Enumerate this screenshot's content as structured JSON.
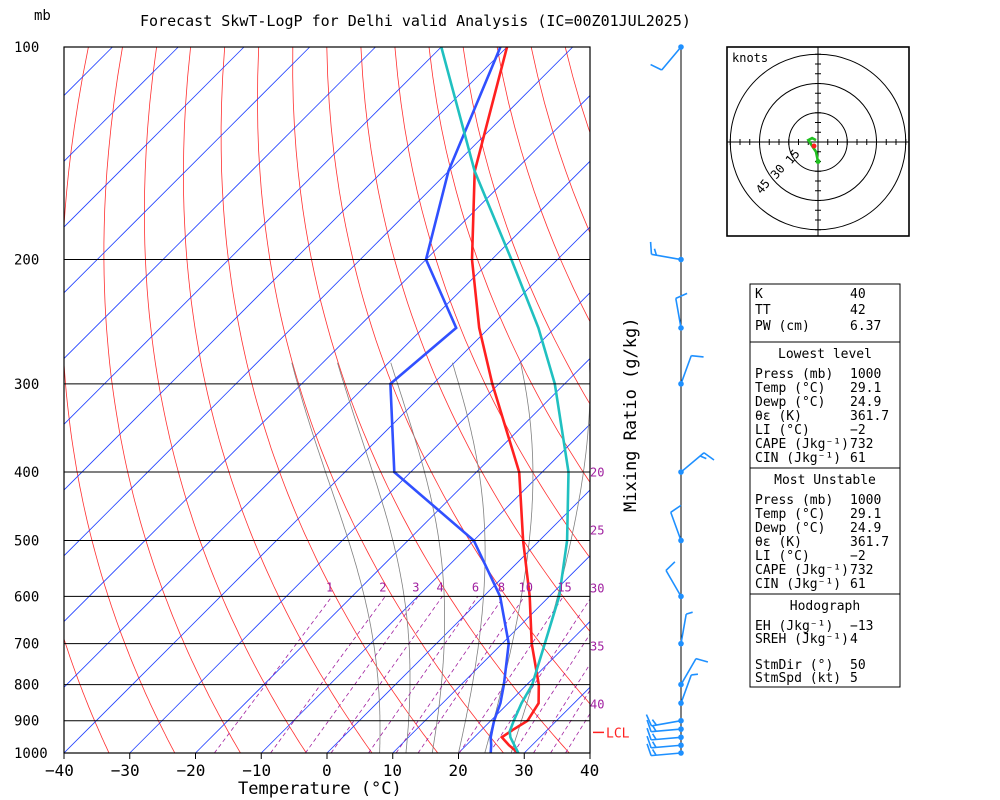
{
  "chart_data": [
    {
      "type": "skewt",
      "title": "Forecast SkwT-LogP for Delhi valid Analysis  (IC=00Z01JUL2025)",
      "xlabel": "Temperature (°C)",
      "ylabel_units": "mb",
      "xlim": [
        -40,
        40
      ],
      "ylim": [
        1000,
        100
      ],
      "x_ticks": [
        -40,
        -30,
        -20,
        -10,
        0,
        10,
        20,
        30,
        40
      ],
      "pressure_levels": [
        100,
        200,
        300,
        400,
        500,
        600,
        700,
        800,
        900,
        1000
      ],
      "grid": true,
      "series": [
        {
          "name": "Temperature",
          "color": "#ff2020",
          "points": [
            [
              1000,
              29.1
            ],
            [
              975,
              26.5
            ],
            [
              950,
              24.2
            ],
            [
              925,
              24.8
            ],
            [
              900,
              25.6
            ],
            [
              850,
              24.6
            ],
            [
              800,
              21.8
            ],
            [
              700,
              14.5
            ],
            [
              600,
              7.0
            ],
            [
              500,
              -2.5
            ],
            [
              400,
              -13.5
            ],
            [
              300,
              -31.0
            ],
            [
              250,
              -41.5
            ],
            [
              200,
              -53.0
            ],
            [
              150,
              -66.0
            ],
            [
              100,
              -80.0
            ]
          ]
        },
        {
          "name": "Dewpoint",
          "color": "#3050ff",
          "points": [
            [
              1000,
              24.9
            ],
            [
              975,
              23.8
            ],
            [
              950,
              22.5
            ],
            [
              925,
              21.5
            ],
            [
              900,
              20.5
            ],
            [
              850,
              18.8
            ],
            [
              800,
              16.5
            ],
            [
              700,
              11.0
            ],
            [
              600,
              2.5
            ],
            [
              500,
              -10.0
            ],
            [
              400,
              -32.5
            ],
            [
              300,
              -46.5
            ],
            [
              250,
              -45.0
            ],
            [
              200,
              -60.0
            ],
            [
              150,
              -70.0
            ],
            [
              100,
              -81.0
            ]
          ]
        },
        {
          "name": "Parcel",
          "color": "#20c0c0",
          "points": [
            [
              1000,
              29.1
            ],
            [
              950,
              25.5
            ],
            [
              932,
              24.5
            ],
            [
              900,
              23.5
            ],
            [
              850,
              22.0
            ],
            [
              800,
              20.8
            ],
            [
              700,
              16.5
            ],
            [
              600,
              11.5
            ],
            [
              500,
              4.2
            ],
            [
              400,
              -6.0
            ],
            [
              300,
              -21.5
            ],
            [
              250,
              -32.5
            ],
            [
              200,
              -47.0
            ],
            [
              150,
              -66.0
            ],
            [
              100,
              -90.0
            ]
          ]
        }
      ],
      "mixing_ratio_title": "Mixing Ratio (g/kg)",
      "mixing_ratio_lines": [
        "1",
        "2",
        "3",
        "4",
        "6",
        "8",
        "10",
        "15",
        "20",
        "25",
        "30",
        "35",
        "40"
      ],
      "lcl_label": "LCL",
      "lcl_pressure": 935,
      "wind_barbs": [
        {
          "p": 100,
          "dir": 220,
          "spd": 10
        },
        {
          "p": 200,
          "dir": 280,
          "spd": 15
        },
        {
          "p": 250,
          "dir": 350,
          "spd": 10
        },
        {
          "p": 300,
          "dir": 20,
          "spd": 10
        },
        {
          "p": 400,
          "dir": 50,
          "spd": 15
        },
        {
          "p": 500,
          "dir": 340,
          "spd": 10
        },
        {
          "p": 600,
          "dir": 330,
          "spd": 10
        },
        {
          "p": 700,
          "dir": 10,
          "spd": 5
        },
        {
          "p": 800,
          "dir": 30,
          "spd": 10
        },
        {
          "p": 850,
          "dir": 20,
          "spd": 5
        },
        {
          "p": 900,
          "dir": 260,
          "spd": 15
        },
        {
          "p": 925,
          "dir": 265,
          "spd": 15
        },
        {
          "p": 950,
          "dir": 265,
          "spd": 15
        },
        {
          "p": 975,
          "dir": 265,
          "spd": 15
        },
        {
          "p": 1000,
          "dir": 265,
          "spd": 15
        }
      ]
    },
    {
      "type": "hodograph",
      "units_label": "knots",
      "ring_labels": [
        "15",
        "30",
        "45"
      ],
      "rings_kt": [
        15,
        30,
        45
      ],
      "points_kt": [
        [
          0,
          -10
        ],
        [
          -1,
          -5
        ],
        [
          -3,
          -2
        ],
        [
          -5,
          1
        ],
        [
          -3,
          2
        ],
        [
          -1,
          1
        ]
      ]
    }
  ],
  "indices": [
    {
      "label": "K",
      "value": "40"
    },
    {
      "label": "TT",
      "value": "42"
    },
    {
      "label": "PW (cm)",
      "value": "6.37"
    }
  ],
  "lowest_level": {
    "header": "Lowest level",
    "rows": [
      {
        "label": "Press (mb)",
        "value": "1000"
      },
      {
        "label": "Temp (°C)",
        "value": "29.1"
      },
      {
        "label": "Dewp (°C)",
        "value": "24.9"
      },
      {
        "label": "θε (K)",
        "value": "361.7"
      },
      {
        "label": "LI (°C)",
        "value": "−2"
      },
      {
        "label": "CAPE (Jkg⁻¹)",
        "value": "732"
      },
      {
        "label": "CIN (Jkg⁻¹)",
        "value": "61"
      }
    ]
  },
  "most_unstable": {
    "header": "Most Unstable",
    "rows": [
      {
        "label": "Press (mb)",
        "value": "1000"
      },
      {
        "label": "Temp (°C)",
        "value": "29.1"
      },
      {
        "label": "Dewp (°C)",
        "value": "24.9"
      },
      {
        "label": "θε (K)",
        "value": "361.7"
      },
      {
        "label": "LI (°C)",
        "value": "−2"
      },
      {
        "label": "CAPE (Jkg⁻¹)",
        "value": "732"
      },
      {
        "label": "CIN (Jkg⁻¹)",
        "value": "61"
      }
    ]
  },
  "hodograph_box": {
    "header": "Hodograph",
    "rows": [
      {
        "label": "EH (Jkg⁻¹)",
        "value": "−13"
      },
      {
        "label": "SREH (Jkg⁻¹)",
        "value": "4"
      },
      {
        "label": "",
        "value": ""
      },
      {
        "label": "StmDir (°)",
        "value": "50"
      },
      {
        "label": "StmSpd (kt)",
        "value": "5"
      }
    ]
  },
  "colors": {
    "isotherm": "#2040ff",
    "dry_adiabat": "#ff3030",
    "moist_adiabat": "#808080",
    "mixing_ratio": "#a020a0",
    "barb": "#1e90ff",
    "temperature": "#ff2020",
    "dewpoint": "#3050ff",
    "parcel": "#20c0c0",
    "hodograph_trace": "#20c020"
  }
}
